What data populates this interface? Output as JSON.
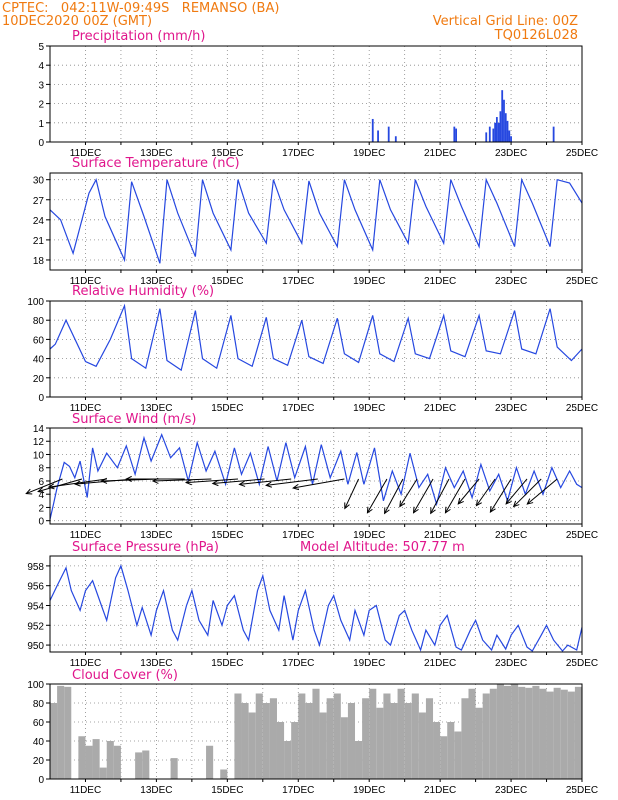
{
  "header": {
    "line1_left": "CPTEC:   042:11W-09:49S   REMANSO (BA)",
    "line2_left": "10DEC2020 00Z (GMT)",
    "line2_right": "Vertical Grid Line: 00Z",
    "line3_right": "TQ0126L028"
  },
  "colors": {
    "header": "#f07a10",
    "title": "#e0168c",
    "line": "#2648e0",
    "cloud": "#aaaaaa",
    "wind_arrow": "#000000"
  },
  "x_axis": {
    "start": "10DEC2020 00Z",
    "end": "25DEC2020 00Z",
    "tick_labels": [
      "11DEC",
      "13DEC",
      "15DEC",
      "17DEC",
      "19DEC",
      "21DEC",
      "23DEC",
      "25DEC"
    ],
    "tick_days": [
      11,
      13,
      15,
      17,
      19,
      21,
      23,
      25
    ],
    "gridlines": "daily at 00Z"
  },
  "panels": {
    "precip": {
      "title": "Precipitation (mm/h)"
    },
    "temp": {
      "title": "Surface Temperature (nC)"
    },
    "rh": {
      "title": "Relative Humidity (%)"
    },
    "wind": {
      "title": "Surface Wind (m/s)"
    },
    "pres": {
      "title": "Surface Pressure (hPa)",
      "extra": "Model Altitude: 507.77 m"
    },
    "cloud": {
      "title": "Cloud Cover (%)"
    }
  },
  "chart_data": [
    {
      "type": "bar",
      "title": "Precipitation (mm/h)",
      "ylim": [
        0,
        5
      ],
      "yticks": [
        0,
        1,
        2,
        3,
        4,
        5
      ],
      "x": [
        19.1,
        19.25,
        19.55,
        19.75,
        21.4,
        21.45,
        22.3,
        22.4,
        22.5,
        22.55,
        22.6,
        22.65,
        22.7,
        22.75,
        22.8,
        22.85,
        22.9,
        22.95,
        23.0,
        24.2
      ],
      "values": [
        1.2,
        0.6,
        0.8,
        0.3,
        0.8,
        0.7,
        0.5,
        0.8,
        0.7,
        1.0,
        1.3,
        1.0,
        1.6,
        2.7,
        2.2,
        1.5,
        1.1,
        0.6,
        0.3,
        0.8
      ]
    },
    {
      "type": "line",
      "title": "Surface Temperature (nC)",
      "ylim": [
        16.5,
        31
      ],
      "yticks": [
        18,
        21,
        24,
        27,
        30
      ],
      "x": [
        10.0,
        10.3,
        10.65,
        11.1,
        11.3,
        11.55,
        12.1,
        12.3,
        12.65,
        13.1,
        13.3,
        13.6,
        14.1,
        14.3,
        14.6,
        15.1,
        15.3,
        15.6,
        16.1,
        16.3,
        16.6,
        17.1,
        17.3,
        17.6,
        18.1,
        18.3,
        18.6,
        19.1,
        19.3,
        19.6,
        20.1,
        20.3,
        20.6,
        21.1,
        21.3,
        21.6,
        22.1,
        22.3,
        22.6,
        23.1,
        23.3,
        23.6,
        24.1,
        24.3,
        24.65,
        25.0
      ],
      "values": [
        25.5,
        24.0,
        19.0,
        28.0,
        30.0,
        24.5,
        18.0,
        29.7,
        24.5,
        17.5,
        30.0,
        25.0,
        18.5,
        30.0,
        25.0,
        19.5,
        30.0,
        25.0,
        20.5,
        30.0,
        25.5,
        20.5,
        29.8,
        25.0,
        20.0,
        30.0,
        25.5,
        19.5,
        30.0,
        25.5,
        20.5,
        30.0,
        26.0,
        20.5,
        30.0,
        26.0,
        20.0,
        30.0,
        26.5,
        20.0,
        30.0,
        26.5,
        20.0,
        30.0,
        29.5,
        26.5
      ]
    },
    {
      "type": "line",
      "title": "Relative Humidity (%)",
      "ylim": [
        0,
        100
      ],
      "yticks": [
        0,
        20,
        40,
        60,
        80,
        100
      ],
      "x": [
        10.0,
        10.15,
        10.45,
        11.0,
        11.3,
        11.7,
        12.1,
        12.3,
        12.7,
        13.1,
        13.3,
        13.7,
        14.1,
        14.3,
        14.7,
        15.1,
        15.3,
        15.7,
        16.1,
        16.3,
        16.7,
        17.1,
        17.3,
        17.7,
        18.1,
        18.3,
        18.7,
        19.1,
        19.3,
        19.7,
        20.1,
        20.3,
        20.7,
        21.1,
        21.3,
        21.7,
        22.1,
        22.3,
        22.7,
        23.1,
        23.3,
        23.7,
        24.1,
        24.3,
        24.7,
        25.0
      ],
      "values": [
        50,
        55,
        80,
        37,
        32,
        60,
        95,
        40,
        30,
        92,
        38,
        28,
        90,
        40,
        30,
        85,
        40,
        32,
        83,
        40,
        33,
        80,
        42,
        35,
        82,
        45,
        36,
        85,
        45,
        37,
        82,
        45,
        40,
        85,
        48,
        42,
        85,
        48,
        45,
        90,
        50,
        45,
        92,
        52,
        38,
        50
      ]
    },
    {
      "type": "line",
      "title": "Surface Wind (m/s)",
      "ylim": [
        -0.5,
        14
      ],
      "yticks": [
        0,
        2,
        4,
        6,
        8,
        10,
        12,
        14
      ],
      "x": [
        10.0,
        10.1,
        10.2,
        10.4,
        10.55,
        10.7,
        10.85,
        11.05,
        11.2,
        11.35,
        11.6,
        11.9,
        12.15,
        12.4,
        12.65,
        12.85,
        13.15,
        13.4,
        13.65,
        13.9,
        14.15,
        14.4,
        14.65,
        14.95,
        15.2,
        15.4,
        15.65,
        15.9,
        16.15,
        16.4,
        16.65,
        16.9,
        17.2,
        17.4,
        17.65,
        17.9,
        18.2,
        18.4,
        18.65,
        18.85,
        19.15,
        19.4,
        19.65,
        19.9,
        20.15,
        20.4,
        20.65,
        20.9,
        21.15,
        21.4,
        21.65,
        21.9,
        22.15,
        22.4,
        22.65,
        22.9,
        23.15,
        23.4,
        23.65,
        23.9,
        24.15,
        24.4,
        24.65,
        24.85,
        25.0
      ],
      "values": [
        0.2,
        2.5,
        5.0,
        8.8,
        8.2,
        6.5,
        9.0,
        3.5,
        11.0,
        7.5,
        10.2,
        8.0,
        11.3,
        7.0,
        12.5,
        9.0,
        13.0,
        9.5,
        11.0,
        6.0,
        11.8,
        7.5,
        10.5,
        5.5,
        11.0,
        7.0,
        10.2,
        5.5,
        11.2,
        6.0,
        11.8,
        6.5,
        11.2,
        5.5,
        11.5,
        6.5,
        10.5,
        5.5,
        10.3,
        5.5,
        11.0,
        3.0,
        7.5,
        4.0,
        10.2,
        5.0,
        7.0,
        2.5,
        8.0,
        5.0,
        7.5,
        3.5,
        8.5,
        4.5,
        7.0,
        3.0,
        8.0,
        4.0,
        7.5,
        4.0,
        8.0,
        5.0,
        7.5,
        5.5,
        5.0
      ],
      "wind_arrows": {
        "x": [
          10.35,
          10.9,
          11.6,
          12.35,
          13.1,
          13.8,
          14.55,
          15.3,
          16.05,
          16.8,
          17.55,
          18.3,
          18.7,
          19.5,
          19.95,
          20.35,
          20.8,
          21.25,
          21.7,
          22.1,
          22.55,
          23.0,
          23.45,
          23.85,
          24.3
        ],
        "speed_ms": [
          6,
          7,
          9,
          9,
          9,
          9,
          9,
          8,
          8,
          8,
          8,
          8,
          5,
          6,
          6,
          5,
          6,
          6,
          6,
          5,
          5,
          6,
          5,
          6,
          6
        ],
        "dir_deg": [
          68,
          74,
          82,
          85,
          88,
          90,
          88,
          86,
          85,
          84,
          83,
          80,
          25,
          30,
          28,
          32,
          30,
          28,
          30,
          40,
          35,
          32,
          40,
          45,
          50
        ]
      }
    },
    {
      "type": "line",
      "title": "Surface Pressure (hPa)",
      "ylim": [
        949.3,
        959
      ],
      "yticks": [
        950,
        952,
        954,
        956,
        958
      ],
      "x": [
        10.0,
        10.2,
        10.45,
        10.6,
        10.85,
        11.0,
        11.2,
        11.45,
        11.6,
        11.85,
        12.0,
        12.2,
        12.45,
        12.6,
        12.85,
        13.0,
        13.2,
        13.45,
        13.6,
        13.85,
        14.0,
        14.2,
        14.45,
        14.6,
        14.85,
        15.0,
        15.2,
        15.45,
        15.6,
        15.85,
        16.0,
        16.2,
        16.45,
        16.6,
        16.85,
        17.0,
        17.2,
        17.45,
        17.6,
        17.85,
        18.0,
        18.2,
        18.45,
        18.6,
        18.85,
        19.0,
        19.2,
        19.45,
        19.6,
        19.85,
        20.0,
        20.2,
        20.45,
        20.6,
        20.85,
        21.0,
        21.2,
        21.45,
        21.6,
        21.85,
        22.0,
        22.2,
        22.45,
        22.6,
        22.85,
        23.0,
        23.2,
        23.45,
        23.6,
        23.85,
        24.0,
        24.2,
        24.45,
        24.6,
        24.85,
        25.0
      ],
      "values": [
        954.5,
        956.0,
        957.8,
        955.5,
        953.5,
        955.5,
        956.5,
        954.0,
        952.5,
        956.8,
        958.0,
        955.5,
        952.0,
        953.8,
        951.0,
        953.5,
        955.5,
        951.5,
        950.5,
        954.0,
        955.5,
        952.5,
        951.0,
        954.5,
        952.0,
        954.0,
        955.0,
        951.5,
        950.5,
        955.5,
        957.0,
        953.5,
        951.5,
        955.0,
        950.5,
        953.5,
        955.5,
        951.5,
        950.0,
        954.0,
        955.0,
        952.5,
        950.5,
        953.5,
        951.0,
        953.5,
        954.0,
        950.5,
        950.0,
        953.0,
        953.5,
        951.5,
        949.5,
        951.5,
        950.0,
        952.0,
        953.0,
        949.8,
        949.5,
        951.5,
        952.5,
        950.5,
        949.5,
        951.0,
        949.6,
        951.0,
        952.0,
        949.8,
        949.4,
        951.0,
        952.0,
        950.5,
        949.4,
        950.0,
        949.5,
        951.8
      ]
    },
    {
      "type": "bar",
      "title": "Cloud Cover (%)",
      "ylim": [
        0,
        100
      ],
      "yticks": [
        0,
        20,
        40,
        60,
        80,
        100
      ],
      "x": [
        10.1,
        10.3,
        10.5,
        10.7,
        10.9,
        11.1,
        11.3,
        11.5,
        11.7,
        11.9,
        12.1,
        12.3,
        12.5,
        12.7,
        12.9,
        13.1,
        13.3,
        13.5,
        13.7,
        13.9,
        14.1,
        14.3,
        14.5,
        14.7,
        14.9,
        15.1,
        15.3,
        15.5,
        15.7,
        15.9,
        16.1,
        16.3,
        16.5,
        16.7,
        16.9,
        17.1,
        17.3,
        17.5,
        17.7,
        17.9,
        18.1,
        18.3,
        18.5,
        18.7,
        18.9,
        19.1,
        19.3,
        19.5,
        19.7,
        19.9,
        20.1,
        20.3,
        20.5,
        20.7,
        20.9,
        21.1,
        21.3,
        21.5,
        21.7,
        21.9,
        22.1,
        22.3,
        22.5,
        22.7,
        22.9,
        23.1,
        23.3,
        23.5,
        23.7,
        23.9,
        24.1,
        24.3,
        24.5,
        24.7,
        24.9
      ],
      "values": [
        80,
        98,
        97,
        0,
        45,
        35,
        42,
        12,
        40,
        35,
        0,
        0,
        28,
        30,
        0,
        0,
        0,
        22,
        0,
        0,
        0,
        0,
        35,
        0,
        10,
        0,
        90,
        80,
        70,
        90,
        80,
        85,
        60,
        40,
        60,
        90,
        80,
        95,
        70,
        85,
        90,
        65,
        80,
        40,
        85,
        95,
        75,
        90,
        80,
        95,
        80,
        90,
        70,
        85,
        60,
        45,
        60,
        50,
        85,
        95,
        75,
        90,
        95,
        100,
        98,
        100,
        97,
        96,
        98,
        95,
        92,
        96,
        94,
        92,
        97
      ]
    }
  ]
}
